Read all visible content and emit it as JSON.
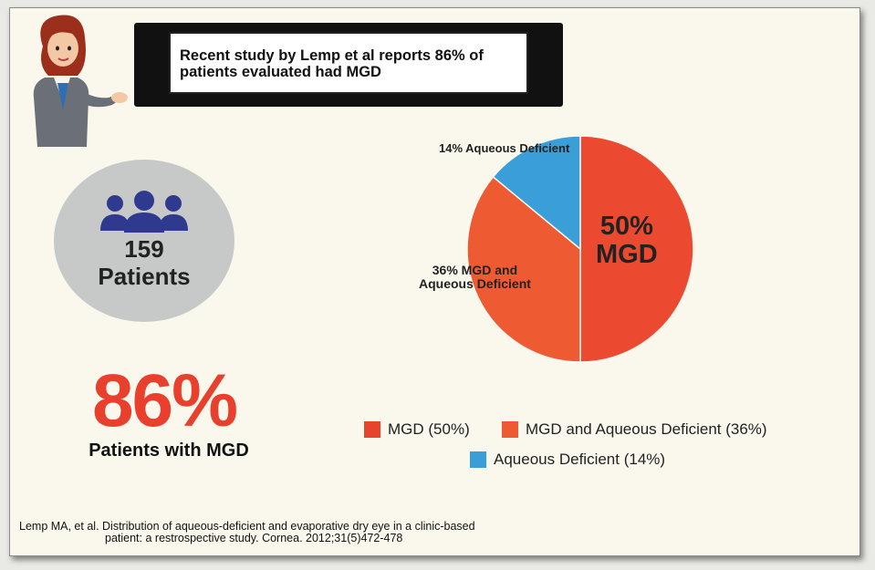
{
  "banner": {
    "text": "Recent study by Lemp et al reports 86% of patients evaluated had MGD"
  },
  "patients": {
    "count": "159",
    "label": "Patients"
  },
  "highlight": {
    "percent": "86%",
    "label": "Patients with MGD"
  },
  "citation": {
    "line1": "Lemp MA, et al. Distribution of aqueous-deficient and evaporative dry eye in a clinic-based",
    "line2": "patient: a restrospective study. Cornea. 2012;31(5)472-478"
  },
  "chart_data": {
    "type": "pie",
    "title": "",
    "slices": [
      {
        "name": "MGD",
        "value": 50,
        "color": "#ec4a30",
        "slice_label": "50%\nMGD",
        "legend": "MGD (50%)"
      },
      {
        "name": "MGD and Aqueous Deficient",
        "value": 36,
        "color": "#ee5a32",
        "slice_label": "36%  MGD and\nAqueous Deficient",
        "legend": "MGD and Aqueous Deficient (36%)"
      },
      {
        "name": "Aqueous Deficient",
        "value": 14,
        "color": "#3a9ed8",
        "slice_label": "14% Aqueous Deficient",
        "legend": "Aqueous Deficient (14%)"
      }
    ],
    "legend_position": "bottom"
  },
  "pie_labels": {
    "mgd_pct": "50%",
    "mgd_name": "MGD",
    "mixed_line1": "36%  MGD and",
    "mixed_line2": "Aqueous Deficient",
    "aqueous": "14% Aqueous Deficient"
  }
}
